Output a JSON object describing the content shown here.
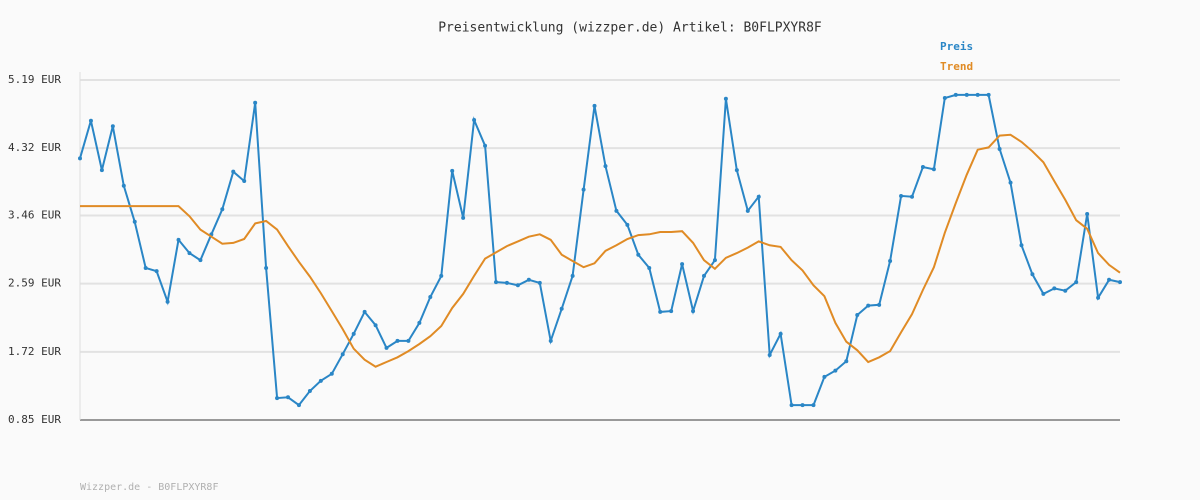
{
  "chart_data": {
    "type": "line",
    "title": "Preisentwicklung (wizzper.de) Artikel: B0FLPXYR8F",
    "footer": "Wizzper.de - B0FLPXYR8F",
    "ylim": [
      0.85,
      5.19
    ],
    "yticks": [
      {
        "value": 0.85,
        "label": "0.85 EUR"
      },
      {
        "value": 1.72,
        "label": "1.72 EUR"
      },
      {
        "value": 2.59,
        "label": "2.59 EUR"
      },
      {
        "value": 3.46,
        "label": "3.46 EUR"
      },
      {
        "value": 4.32,
        "label": "4.32 EUR"
      },
      {
        "value": 5.19,
        "label": "5.19 EUR"
      }
    ],
    "grid": true,
    "legend": "top-right",
    "series": [
      {
        "name": "Preis",
        "color": "#2a86c6",
        "markers": true,
        "values": [
          4.19,
          4.67,
          4.04,
          4.6,
          3.84,
          3.38,
          2.79,
          2.75,
          2.36,
          3.15,
          2.98,
          2.89,
          3.22,
          3.54,
          4.02,
          3.9,
          4.9,
          2.79,
          1.13,
          1.14,
          1.04,
          1.22,
          1.35,
          1.44,
          1.69,
          1.95,
          2.23,
          2.06,
          1.77,
          1.86,
          1.86,
          2.09,
          2.42,
          2.69,
          4.03,
          3.43,
          4.68,
          4.35,
          2.61,
          2.6,
          2.57,
          2.64,
          2.6,
          1.86,
          2.27,
          2.69,
          3.79,
          4.86,
          4.09,
          3.52,
          3.34,
          2.96,
          2.79,
          2.23,
          2.24,
          2.84,
          2.24,
          2.69,
          2.89,
          4.95,
          4.04,
          3.52,
          3.7,
          1.68,
          1.95,
          1.04,
          1.04,
          1.04,
          1.4,
          1.48,
          1.6,
          2.19,
          2.31,
          2.32,
          2.88,
          3.71,
          3.7,
          4.08,
          4.05,
          4.96,
          5.0,
          5.0,
          5.0,
          5.0,
          4.31,
          3.88,
          3.08,
          2.71,
          2.46,
          2.53,
          2.5,
          2.61,
          3.48,
          2.41,
          2.64,
          2.61
        ]
      },
      {
        "name": "Trend",
        "color": "#e08b25",
        "markers": false,
        "values": [
          3.58,
          3.58,
          3.58,
          3.58,
          3.58,
          3.58,
          3.58,
          3.58,
          3.58,
          3.58,
          3.45,
          3.28,
          3.19,
          3.1,
          3.11,
          3.16,
          3.36,
          3.39,
          3.28,
          3.07,
          2.87,
          2.68,
          2.47,
          2.24,
          2.01,
          1.76,
          1.62,
          1.53,
          1.59,
          1.65,
          1.73,
          1.82,
          1.92,
          2.05,
          2.28,
          2.46,
          2.69,
          2.91,
          2.99,
          3.07,
          3.13,
          3.19,
          3.22,
          3.15,
          2.96,
          2.88,
          2.8,
          2.85,
          3.01,
          3.08,
          3.16,
          3.21,
          3.22,
          3.25,
          3.25,
          3.26,
          3.11,
          2.89,
          2.78,
          2.92,
          2.98,
          3.05,
          3.13,
          3.08,
          3.06,
          2.89,
          2.76,
          2.57,
          2.43,
          2.09,
          1.85,
          1.74,
          1.59,
          1.65,
          1.73,
          1.97,
          2.2,
          2.51,
          2.8,
          3.24,
          3.62,
          3.98,
          4.3,
          4.33,
          4.48,
          4.49,
          4.4,
          4.28,
          4.14,
          3.9,
          3.66,
          3.4,
          3.29,
          2.98,
          2.83,
          2.73
        ]
      }
    ]
  }
}
